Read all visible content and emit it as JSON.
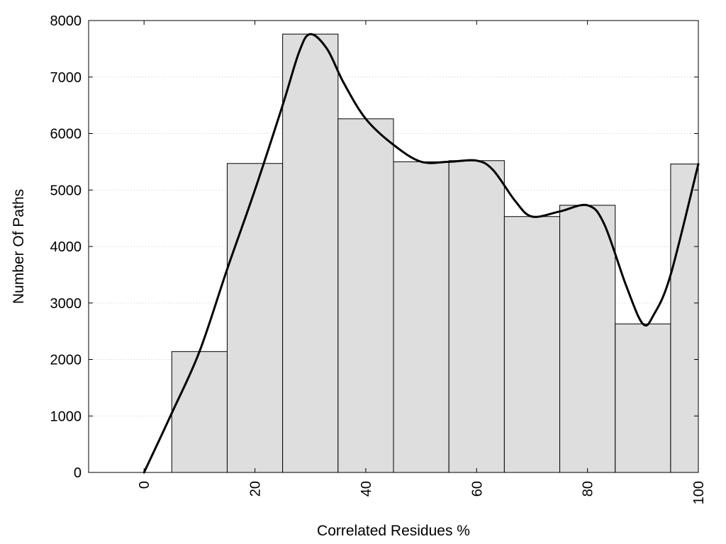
{
  "chart_data": {
    "type": "bar",
    "title": "",
    "xlabel": "Correlated Residues %",
    "ylabel": "Number Of Paths",
    "xlim": [
      -10,
      100
    ],
    "ylim": [
      0,
      8000
    ],
    "x_ticks": [
      0,
      20,
      40,
      60,
      80,
      100
    ],
    "y_ticks": [
      0,
      1000,
      2000,
      3000,
      4000,
      5000,
      6000,
      7000,
      8000
    ],
    "grid": "horizontal dotted",
    "bar_width": 10,
    "bins": [
      {
        "x": 10,
        "value": 2140
      },
      {
        "x": 20,
        "value": 5470
      },
      {
        "x": 30,
        "value": 7760
      },
      {
        "x": 40,
        "value": 6260
      },
      {
        "x": 50,
        "value": 5500
      },
      {
        "x": 60,
        "value": 5520
      },
      {
        "x": 70,
        "value": 4530
      },
      {
        "x": 80,
        "value": 4730
      },
      {
        "x": 90,
        "value": 2630
      },
      {
        "x": 100,
        "value": 5460
      }
    ],
    "curve": [
      [
        0,
        0
      ],
      [
        5,
        1050
      ],
      [
        10,
        2140
      ],
      [
        15,
        3600
      ],
      [
        20,
        5000
      ],
      [
        25,
        6500
      ],
      [
        28,
        7450
      ],
      [
        30,
        7760
      ],
      [
        33,
        7500
      ],
      [
        36,
        6900
      ],
      [
        40,
        6260
      ],
      [
        45,
        5800
      ],
      [
        50,
        5500
      ],
      [
        55,
        5500
      ],
      [
        60,
        5520
      ],
      [
        63,
        5350
      ],
      [
        67,
        4800
      ],
      [
        70,
        4530
      ],
      [
        75,
        4620
      ],
      [
        80,
        4730
      ],
      [
        83,
        4400
      ],
      [
        87,
        3300
      ],
      [
        90,
        2630
      ],
      [
        92,
        2800
      ],
      [
        95,
        3500
      ],
      [
        100,
        5460
      ]
    ],
    "colors": {
      "bar_fill": "#dedede",
      "bar_stroke": "#000000",
      "curve": "#000000",
      "grid": "#c8c8c8"
    }
  }
}
